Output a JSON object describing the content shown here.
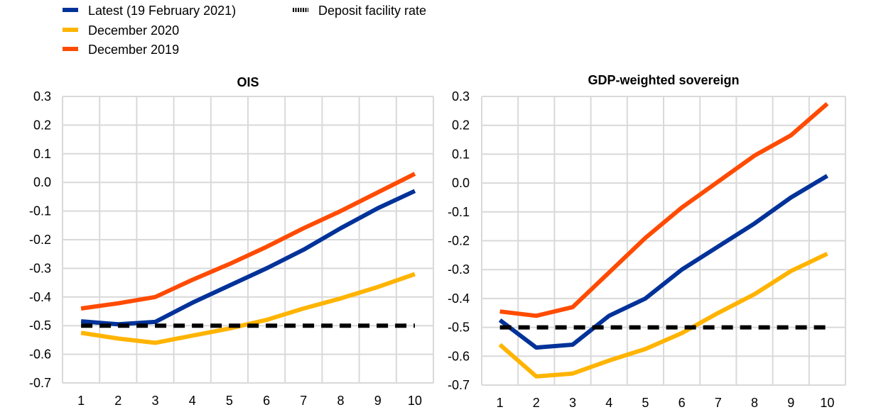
{
  "legend": {
    "items": [
      {
        "label": "Latest (19 February 2021)",
        "color": "#003299",
        "style": "solid"
      },
      {
        "label": "December 2020",
        "color": "#FFB400",
        "style": "solid"
      },
      {
        "label": "December 2019",
        "color": "#FF4B00",
        "style": "solid"
      },
      {
        "label": "Deposit facility rate",
        "color": "#000000",
        "style": "dashed"
      }
    ]
  },
  "chart_data": [
    {
      "type": "line",
      "title": "OIS",
      "xlabel": "",
      "ylabel": "",
      "x": [
        1,
        2,
        3,
        4,
        5,
        6,
        7,
        8,
        9,
        10
      ],
      "xticks": [
        "1",
        "2",
        "3",
        "4",
        "5",
        "6",
        "7",
        "8",
        "9",
        "10"
      ],
      "yticks": [
        "0.3",
        "0.2",
        "0.1",
        "0.0",
        "-0.1",
        "-0.2",
        "-0.3",
        "-0.4",
        "-0.5",
        "-0.6",
        "-0.7"
      ],
      "ylim": [
        -0.7,
        0.3
      ],
      "grid": true,
      "series": [
        {
          "name": "Latest (19 February 2021)",
          "color": "#003299",
          "values": [
            -0.485,
            -0.495,
            -0.487,
            -0.42,
            -0.36,
            -0.3,
            -0.235,
            -0.16,
            -0.09,
            -0.03
          ]
        },
        {
          "name": "December 2020",
          "color": "#FFB400",
          "values": [
            -0.525,
            -0.545,
            -0.56,
            -0.535,
            -0.51,
            -0.48,
            -0.44,
            -0.405,
            -0.365,
            -0.32
          ]
        },
        {
          "name": "December 2019",
          "color": "#FF4B00",
          "values": [
            -0.44,
            -0.422,
            -0.4,
            -0.34,
            -0.285,
            -0.225,
            -0.16,
            -0.1,
            -0.035,
            0.03
          ]
        },
        {
          "name": "Deposit facility rate",
          "color": "#000000",
          "dashed": true,
          "values": [
            -0.5,
            -0.5,
            -0.5,
            -0.5,
            -0.5,
            -0.5,
            -0.5,
            -0.5,
            -0.5,
            -0.5
          ]
        }
      ]
    },
    {
      "type": "line",
      "title": "GDP-weighted sovereign",
      "xlabel": "",
      "ylabel": "",
      "x": [
        1,
        2,
        3,
        4,
        5,
        6,
        7,
        8,
        9,
        10
      ],
      "xticks": [
        "1",
        "2",
        "3",
        "4",
        "5",
        "6",
        "7",
        "8",
        "9",
        "10"
      ],
      "yticks": [
        "0.3",
        "0.2",
        "0.1",
        "0.0",
        "-0.1",
        "-0.2",
        "-0.3",
        "-0.4",
        "-0.5",
        "-0.6",
        "-0.7"
      ],
      "ylim": [
        -0.7,
        0.3
      ],
      "grid": true,
      "series": [
        {
          "name": "Latest (19 February 2021)",
          "color": "#003299",
          "values": [
            -0.475,
            -0.57,
            -0.56,
            -0.46,
            -0.4,
            -0.3,
            -0.22,
            -0.14,
            -0.05,
            0.025
          ]
        },
        {
          "name": "December 2020",
          "color": "#FFB400",
          "values": [
            -0.56,
            -0.67,
            -0.66,
            -0.615,
            -0.575,
            -0.52,
            -0.45,
            -0.385,
            -0.305,
            -0.245
          ]
        },
        {
          "name": "December 2019",
          "color": "#FF4B00",
          "values": [
            -0.445,
            -0.46,
            -0.43,
            -0.31,
            -0.19,
            -0.085,
            0.005,
            0.095,
            0.165,
            0.275
          ]
        },
        {
          "name": "Deposit facility rate",
          "color": "#000000",
          "dashed": true,
          "values": [
            -0.5,
            -0.5,
            -0.5,
            -0.5,
            -0.5,
            -0.5,
            -0.5,
            -0.5,
            -0.5,
            -0.5
          ]
        }
      ]
    }
  ]
}
